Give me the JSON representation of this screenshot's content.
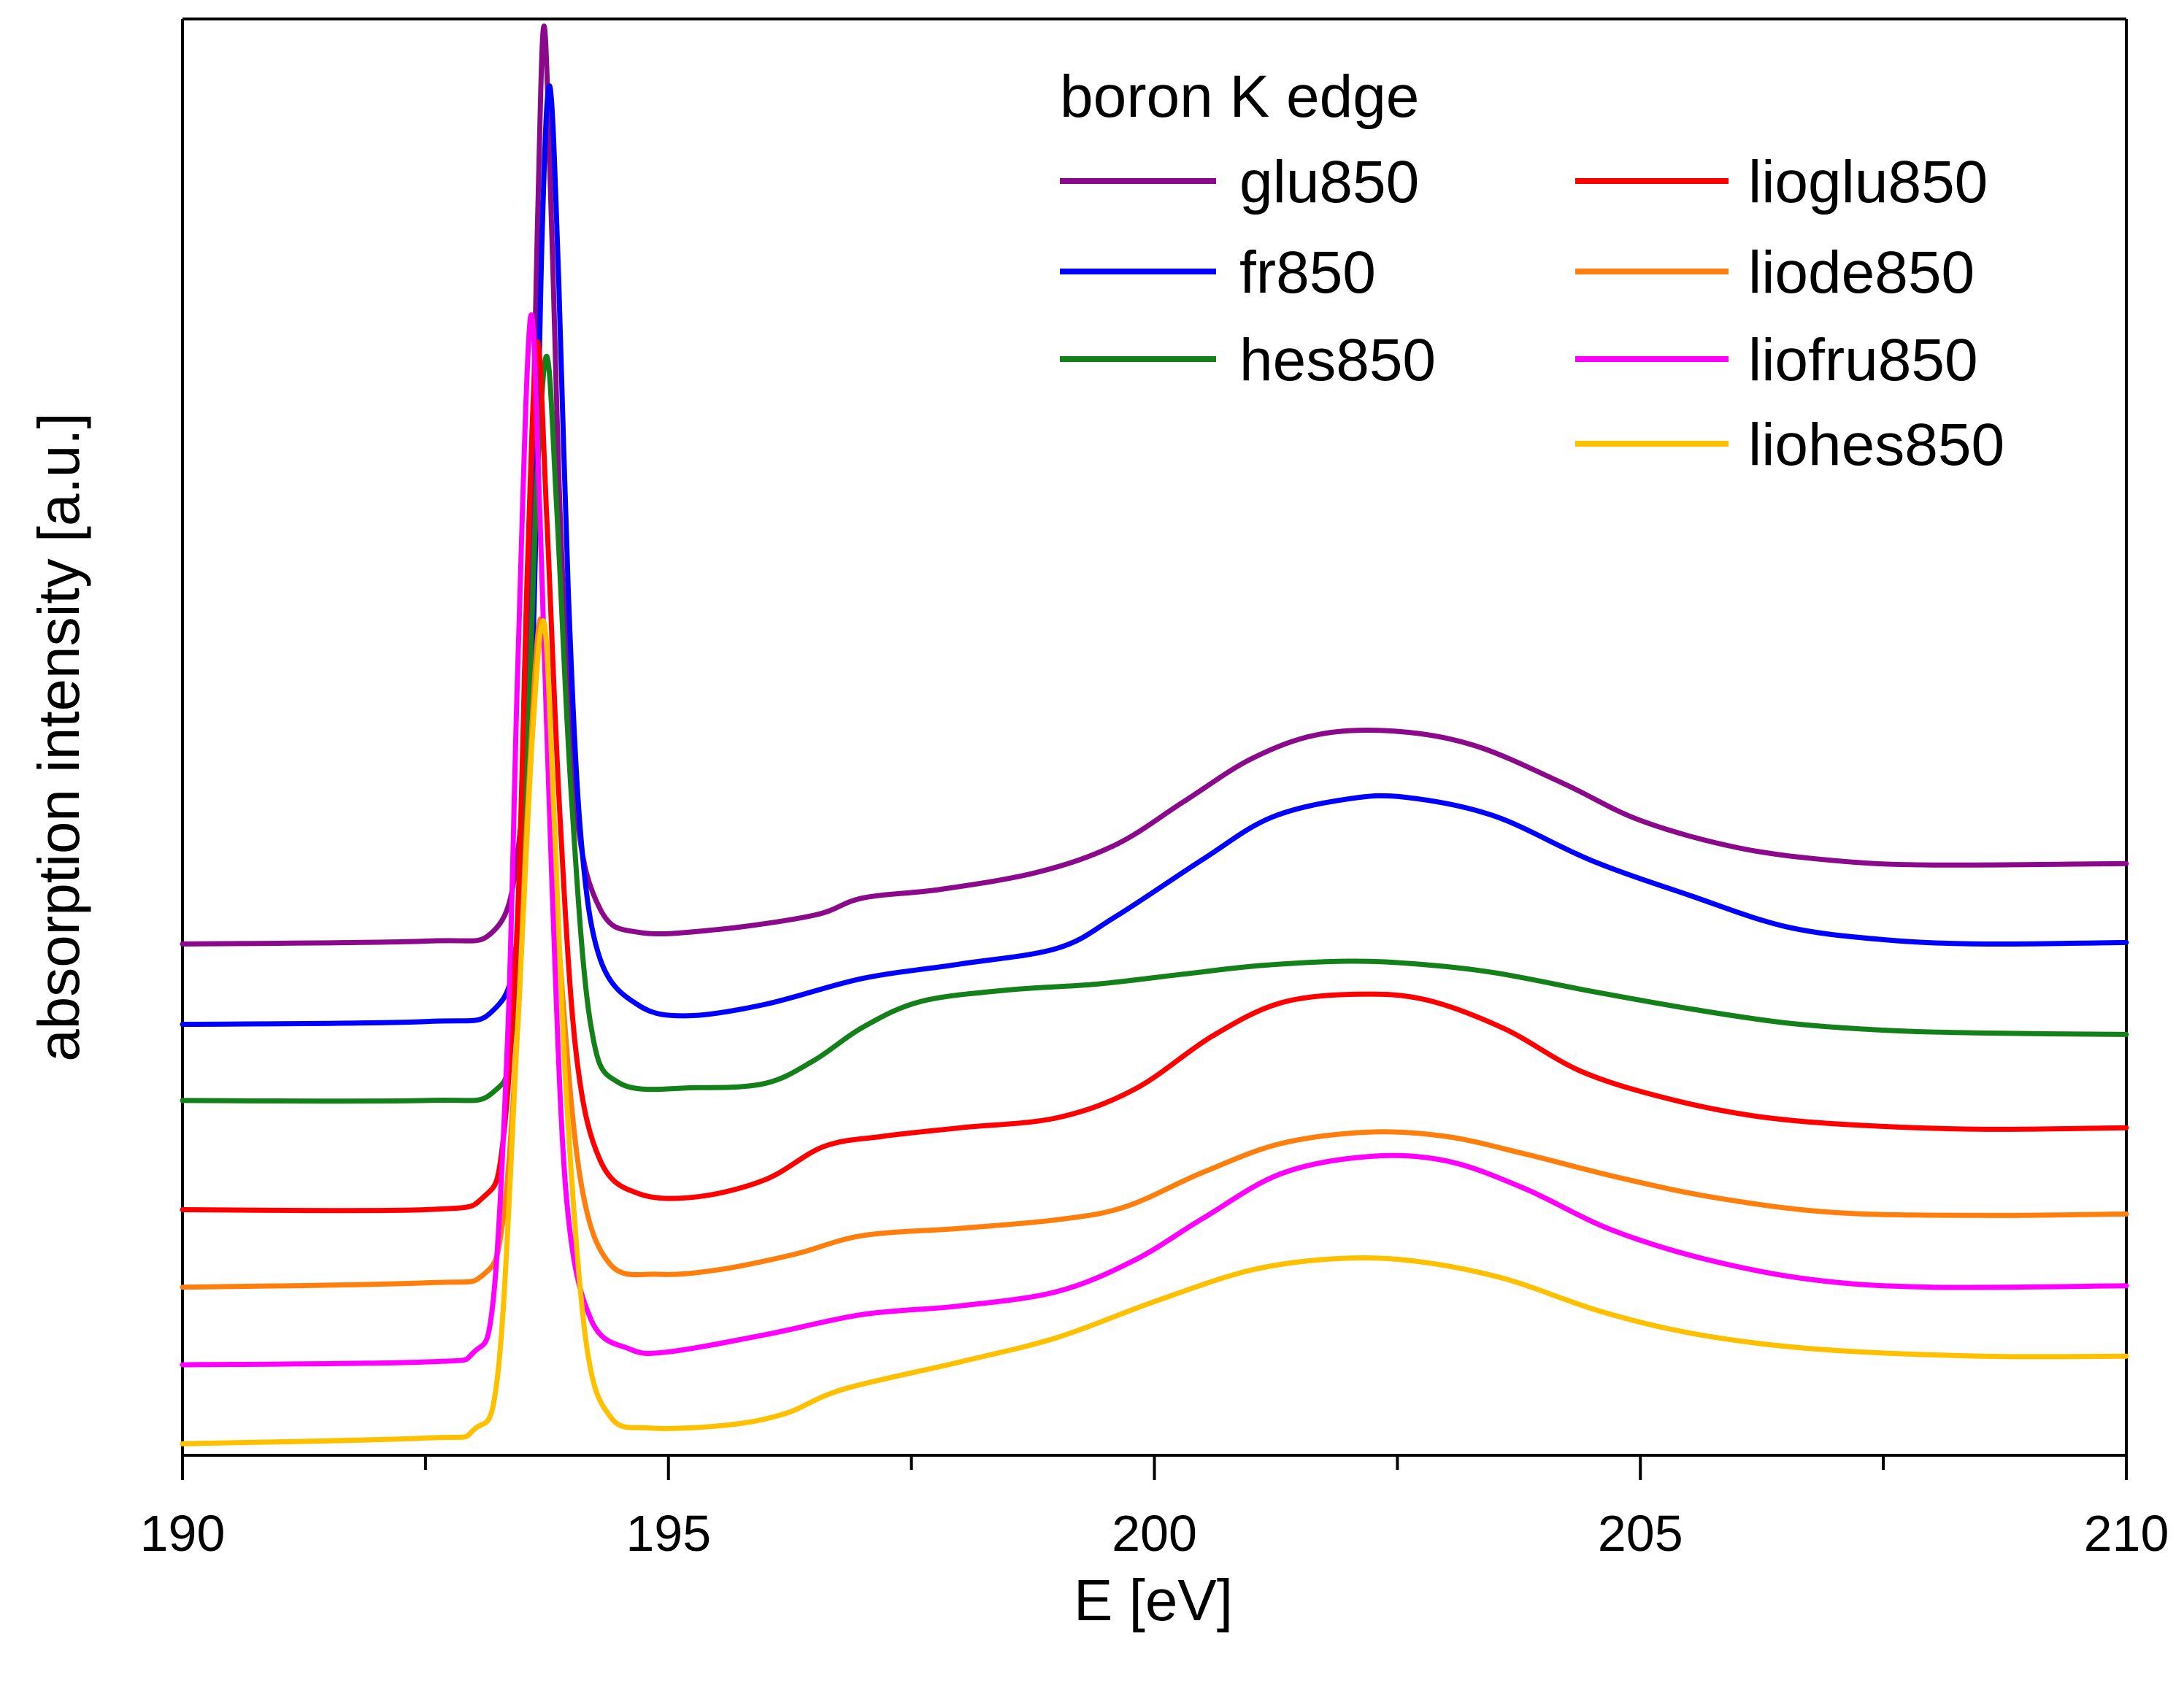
{
  "chart_data": {
    "type": "line",
    "title": "",
    "xlabel": "E [eV]",
    "ylabel": "absorption intensity [a.u.]",
    "xlim": [
      190,
      210
    ],
    "ylim": [
      0,
      100
    ],
    "x_ticks": [
      "190",
      "195",
      "200",
      "205",
      "210"
    ],
    "grid": false,
    "legend_title": "boron K edge",
    "legend_position": "top-right",
    "series": [
      {
        "name": "glu850",
        "color": "#8B0A8B",
        "points": [
          [
            190,
            35.6
          ],
          [
            192.5,
            35.8
          ],
          [
            193.2,
            36.5
          ],
          [
            193.45,
            42
          ],
          [
            193.55,
            55
          ],
          [
            193.65,
            85
          ],
          [
            193.72,
            99.5
          ],
          [
            193.8,
            85
          ],
          [
            193.9,
            63
          ],
          [
            194.05,
            45
          ],
          [
            194.3,
            38
          ],
          [
            194.7,
            36.4
          ],
          [
            195.5,
            36.6
          ],
          [
            196.5,
            37.6
          ],
          [
            197,
            38.8
          ],
          [
            197.8,
            39.4
          ],
          [
            198.8,
            40.6
          ],
          [
            199.6,
            42.5
          ],
          [
            200.3,
            45.5
          ],
          [
            201,
            48.5
          ],
          [
            201.7,
            50.2
          ],
          [
            202.5,
            50.4
          ],
          [
            203.3,
            49.4
          ],
          [
            204.2,
            46.8
          ],
          [
            205,
            44.2
          ],
          [
            206,
            42.3
          ],
          [
            207,
            41.4
          ],
          [
            208,
            41.1
          ],
          [
            210,
            41.2
          ]
        ]
      },
      {
        "name": "fr850",
        "color": "#0000FF",
        "points": [
          [
            190,
            30
          ],
          [
            192.5,
            30.2
          ],
          [
            193.2,
            31
          ],
          [
            193.45,
            36.5
          ],
          [
            193.6,
            55
          ],
          [
            193.7,
            85
          ],
          [
            193.78,
            95.3
          ],
          [
            193.87,
            82
          ],
          [
            193.97,
            60
          ],
          [
            194.1,
            43
          ],
          [
            194.3,
            34.5
          ],
          [
            194.7,
            31.3
          ],
          [
            195.2,
            30.6
          ],
          [
            196,
            31.4
          ],
          [
            197,
            33.2
          ],
          [
            198,
            34.2
          ],
          [
            199,
            35.3
          ],
          [
            199.6,
            37.5
          ],
          [
            200.5,
            41.5
          ],
          [
            201.2,
            44.4
          ],
          [
            202,
            45.7
          ],
          [
            202.6,
            45.8
          ],
          [
            203.5,
            44.5
          ],
          [
            204.5,
            41.4
          ],
          [
            205.5,
            39
          ],
          [
            206.5,
            36.8
          ],
          [
            207.5,
            35.9
          ],
          [
            208.5,
            35.6
          ],
          [
            210,
            35.7
          ]
        ]
      },
      {
        "name": "hes850",
        "color": "#14801A",
        "points": [
          [
            190,
            24.7
          ],
          [
            192.5,
            24.7
          ],
          [
            193.2,
            25.3
          ],
          [
            193.4,
            30
          ],
          [
            193.55,
            50
          ],
          [
            193.65,
            68
          ],
          [
            193.75,
            76.5
          ],
          [
            193.85,
            66
          ],
          [
            194,
            46
          ],
          [
            194.2,
            30
          ],
          [
            194.5,
            25.9
          ],
          [
            195.3,
            25.6
          ],
          [
            196,
            25.9
          ],
          [
            196.5,
            27.5
          ],
          [
            197,
            29.8
          ],
          [
            197.6,
            31.6
          ],
          [
            198.5,
            32.4
          ],
          [
            199.4,
            32.8
          ],
          [
            200.3,
            33.5
          ],
          [
            201.1,
            34.1
          ],
          [
            202,
            34.4
          ],
          [
            202.7,
            34.2
          ],
          [
            203.5,
            33.6
          ],
          [
            204.5,
            32.3
          ],
          [
            205.5,
            31.1
          ],
          [
            206.5,
            30.1
          ],
          [
            207.5,
            29.6
          ],
          [
            208.5,
            29.4
          ],
          [
            210,
            29.3
          ]
        ]
      },
      {
        "name": "lioglu850",
        "color": "#FF0000",
        "points": [
          [
            190,
            17.1
          ],
          [
            192.5,
            17.1
          ],
          [
            193.1,
            18
          ],
          [
            193.3,
            22
          ],
          [
            193.45,
            38
          ],
          [
            193.55,
            62
          ],
          [
            193.65,
            77.5
          ],
          [
            193.75,
            65
          ],
          [
            193.88,
            45
          ],
          [
            194.05,
            28
          ],
          [
            194.3,
            20.5
          ],
          [
            194.7,
            18.2
          ],
          [
            195.3,
            18
          ],
          [
            196,
            19.2
          ],
          [
            196.6,
            21.5
          ],
          [
            197.2,
            22.2
          ],
          [
            198,
            22.8
          ],
          [
            199,
            23.5
          ],
          [
            199.8,
            25.5
          ],
          [
            200.6,
            29.2
          ],
          [
            201.3,
            31.5
          ],
          [
            202.1,
            32.1
          ],
          [
            202.8,
            31.7
          ],
          [
            203.6,
            29.7
          ],
          [
            204.4,
            26.7
          ],
          [
            205.3,
            24.8
          ],
          [
            206.2,
            23.6
          ],
          [
            207.2,
            23
          ],
          [
            208.5,
            22.7
          ],
          [
            210,
            22.8
          ]
        ]
      },
      {
        "name": "liode850",
        "color": "#FF7F0E",
        "points": [
          [
            190,
            11.7
          ],
          [
            192.5,
            12
          ],
          [
            193.1,
            12.6
          ],
          [
            193.3,
            16.5
          ],
          [
            193.45,
            30
          ],
          [
            193.55,
            45
          ],
          [
            193.68,
            58.2
          ],
          [
            193.78,
            48
          ],
          [
            193.9,
            33
          ],
          [
            194.1,
            19
          ],
          [
            194.4,
            13.3
          ],
          [
            194.9,
            12.6
          ],
          [
            195.5,
            12.9
          ],
          [
            196.3,
            14
          ],
          [
            197,
            15.3
          ],
          [
            198,
            15.8
          ],
          [
            199,
            16.4
          ],
          [
            199.7,
            17.3
          ],
          [
            200.5,
            19.7
          ],
          [
            201.3,
            21.7
          ],
          [
            202.2,
            22.5
          ],
          [
            203,
            22.2
          ],
          [
            203.8,
            21
          ],
          [
            204.8,
            19.3
          ],
          [
            205.8,
            17.9
          ],
          [
            207,
            16.9
          ],
          [
            208.5,
            16.7
          ],
          [
            210,
            16.8
          ]
        ]
      },
      {
        "name": "liofru850",
        "color": "#FF00FF",
        "points": [
          [
            190,
            6.3
          ],
          [
            192.5,
            6.5
          ],
          [
            193,
            7.2
          ],
          [
            193.2,
            11
          ],
          [
            193.35,
            30
          ],
          [
            193.45,
            55
          ],
          [
            193.58,
            79.2
          ],
          [
            193.68,
            65
          ],
          [
            193.8,
            40
          ],
          [
            193.95,
            18
          ],
          [
            194.2,
            9.5
          ],
          [
            194.6,
            7.4
          ],
          [
            195,
            7.2
          ],
          [
            196,
            8.4
          ],
          [
            197,
            9.8
          ],
          [
            198,
            10.4
          ],
          [
            199,
            11.4
          ],
          [
            199.8,
            13.6
          ],
          [
            200.5,
            16.5
          ],
          [
            201.3,
            19.6
          ],
          [
            202.2,
            20.8
          ],
          [
            203,
            20.5
          ],
          [
            203.8,
            18.6
          ],
          [
            204.7,
            15.7
          ],
          [
            205.7,
            13.6
          ],
          [
            206.8,
            12.2
          ],
          [
            208,
            11.7
          ],
          [
            210,
            11.8
          ]
        ]
      },
      {
        "name": "liohes850",
        "color": "#FFC000",
        "points": [
          [
            190,
            0.8
          ],
          [
            192.5,
            1.2
          ],
          [
            193,
            1.8
          ],
          [
            193.25,
            6
          ],
          [
            193.45,
            30
          ],
          [
            193.6,
            50
          ],
          [
            193.72,
            58
          ],
          [
            193.82,
            45
          ],
          [
            193.95,
            25
          ],
          [
            194.15,
            8
          ],
          [
            194.4,
            2.7
          ],
          [
            194.8,
            1.9
          ],
          [
            195.6,
            2.1
          ],
          [
            196.2,
            2.9
          ],
          [
            196.8,
            4.6
          ],
          [
            198,
            6.5
          ],
          [
            199,
            8.2
          ],
          [
            200,
            10.7
          ],
          [
            201,
            12.9
          ],
          [
            201.9,
            13.7
          ],
          [
            202.7,
            13.5
          ],
          [
            203.6,
            12.3
          ],
          [
            204.6,
            10
          ],
          [
            205.6,
            8.4
          ],
          [
            206.8,
            7.4
          ],
          [
            208.5,
            6.9
          ],
          [
            210,
            6.9
          ]
        ]
      }
    ]
  }
}
